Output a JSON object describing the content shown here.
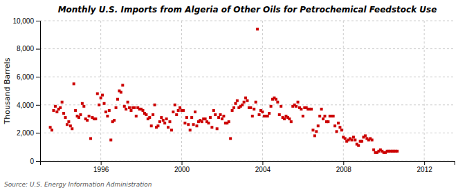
{
  "chart_data": {
    "type": "scatter",
    "title": "Monthly U.S. Imports from Algeria of Other Oils for Petrochemical Feedstock Use",
    "y_label": "Thousand Barrels",
    "annotations": [
      "Source: U.S. Energy Information Administration"
    ],
    "color": "#cc0000",
    "marker": "square",
    "grid": true,
    "xlim": [
      1993.0,
      2013.5
    ],
    "xticks": [
      1996,
      2000,
      2004,
      2008,
      2012
    ],
    "ylim": [
      0,
      10000
    ],
    "yticks": [
      0,
      {
        "value": 2000,
        "label": "2,000"
      },
      {
        "value": 4000,
        "label": "4,000"
      },
      {
        "value": 6000,
        "label": "6,000"
      },
      {
        "value": 8000,
        "label": "8,000"
      },
      {
        "value": 10000,
        "label": "10,000"
      }
    ],
    "x": [
      1993.5,
      1993.583333,
      1993.666667,
      1993.75,
      1993.833333,
      1993.916667,
      1994,
      1994.083333,
      1994.166667,
      1994.25,
      1994.333333,
      1994.416667,
      1994.5,
      1994.583333,
      1994.666667,
      1994.75,
      1994.833333,
      1994.916667,
      1995,
      1995.083333,
      1995.166667,
      1995.25,
      1995.333333,
      1995.416667,
      1995.5,
      1995.583333,
      1995.666667,
      1995.75,
      1995.833333,
      1995.916667,
      1996,
      1996.083333,
      1996.166667,
      1996.25,
      1996.333333,
      1996.416667,
      1996.5,
      1996.583333,
      1996.666667,
      1996.75,
      1996.833333,
      1996.916667,
      1997,
      1997.083333,
      1997.166667,
      1997.25,
      1997.333333,
      1997.416667,
      1997.5,
      1997.583333,
      1997.666667,
      1997.75,
      1997.833333,
      1997.916667,
      1998,
      1998.083333,
      1998.166667,
      1998.25,
      1998.333333,
      1998.416667,
      1998.5,
      1998.583333,
      1998.666667,
      1998.75,
      1998.833333,
      1998.916667,
      1999,
      1999.083333,
      1999.166667,
      1999.25,
      1999.333333,
      1999.416667,
      1999.5,
      1999.583333,
      1999.666667,
      1999.75,
      1999.833333,
      1999.916667,
      2000,
      2000.083333,
      2000.166667,
      2000.25,
      2000.333333,
      2000.416667,
      2000.5,
      2000.583333,
      2000.666667,
      2000.75,
      2000.833333,
      2000.916667,
      2001,
      2001.083333,
      2001.166667,
      2001.25,
      2001.333333,
      2001.416667,
      2001.5,
      2001.583333,
      2001.666667,
      2001.75,
      2001.833333,
      2001.916667,
      2002,
      2002.083333,
      2002.166667,
      2002.25,
      2002.333333,
      2002.416667,
      2002.5,
      2002.583333,
      2002.666667,
      2002.75,
      2002.833333,
      2002.916667,
      2003,
      2003.083333,
      2003.166667,
      2003.25,
      2003.333333,
      2003.416667,
      2003.5,
      2003.583333,
      2003.666667,
      2003.75,
      2003.833333,
      2003.916667,
      2004,
      2004.083333,
      2004.166667,
      2004.25,
      2004.333333,
      2004.416667,
      2004.5,
      2004.583333,
      2004.666667,
      2004.75,
      2004.833333,
      2004.916667,
      2005,
      2005.083333,
      2005.166667,
      2005.25,
      2005.333333,
      2005.416667,
      2005.5,
      2005.583333,
      2005.666667,
      2005.75,
      2005.833333,
      2005.916667,
      2006,
      2006.083333,
      2006.166667,
      2006.25,
      2006.333333,
      2006.416667,
      2006.5,
      2006.583333,
      2006.666667,
      2006.75,
      2006.833333,
      2006.916667,
      2007,
      2007.083333,
      2007.166667,
      2007.25,
      2007.333333,
      2007.416667,
      2007.5,
      2007.583333,
      2007.666667,
      2007.75,
      2007.833333,
      2007.916667,
      2008,
      2008.083333,
      2008.166667,
      2008.25,
      2008.333333,
      2008.416667,
      2008.5,
      2008.583333,
      2008.666667,
      2008.75,
      2008.833333,
      2008.916667,
      2009,
      2009.083333,
      2009.166667,
      2009.25,
      2009.333333,
      2009.416667,
      2009.5,
      2009.583333,
      2009.666667,
      2009.75,
      2009.833333,
      2009.916667,
      2010,
      2010.083333,
      2010.166667,
      2010.25,
      2010.333333,
      2010.416667,
      2010.5,
      2010.583333,
      2010.666667
    ],
    "values": [
      2400,
      2200,
      3600,
      3900,
      3500,
      3700,
      3800,
      4200,
      3400,
      3100,
      2600,
      2800,
      2500,
      2300,
      5500,
      3600,
      3200,
      3100,
      3300,
      4100,
      3900,
      3000,
      2900,
      3200,
      1600,
      3100,
      3000,
      3000,
      4800,
      4000,
      4500,
      4700,
      4100,
      3500,
      3200,
      3600,
      1500,
      2800,
      2900,
      3800,
      4400,
      5000,
      4900,
      5400,
      3900,
      3700,
      4200,
      3800,
      3600,
      3800,
      3800,
      3200,
      3800,
      3700,
      3700,
      3600,
      3400,
      3300,
      3000,
      3100,
      2500,
      3300,
      4000,
      2400,
      2500,
      2800,
      3100,
      2900,
      2700,
      3000,
      2400,
      2800,
      2200,
      3500,
      4000,
      3300,
      3600,
      3800,
      3600,
      3600,
      2700,
      3100,
      2600,
      2200,
      3100,
      2600,
      3500,
      2500,
      2800,
      2900,
      2800,
      3000,
      3000,
      2800,
      2700,
      3100,
      2400,
      3600,
      3300,
      2300,
      3100,
      3300,
      3000,
      3200,
      2700,
      2700,
      2800,
      1600,
      3600,
      3800,
      4100,
      4300,
      3800,
      3900,
      4000,
      4200,
      4500,
      4300,
      3800,
      3800,
      3200,
      3700,
      4200,
      9400,
      3300,
      3600,
      3500,
      3200,
      3200,
      3200,
      3400,
      3900,
      4400,
      4500,
      4400,
      4200,
      3300,
      3900,
      3100,
      3000,
      3200,
      3100,
      3000,
      2800,
      3900,
      4000,
      3900,
      4200,
      3800,
      3700,
      3200,
      3800,
      3800,
      3700,
      3700,
      3700,
      2200,
      1800,
      2100,
      2500,
      3200,
      3700,
      3000,
      3200,
      2800,
      2800,
      3200,
      3200,
      3200,
      2500,
      2100,
      2700,
      2400,
      2200,
      1700,
      1600,
      1400,
      1500,
      1600,
      1500,
      1700,
      1500,
      1200,
      1100,
      1400,
      1400,
      1700,
      1800,
      1600,
      1500,
      1600,
      1500,
      800,
      600,
      600,
      700,
      800,
      700,
      600,
      600,
      700,
      700,
      700,
      700,
      700,
      700,
      700
    ]
  }
}
